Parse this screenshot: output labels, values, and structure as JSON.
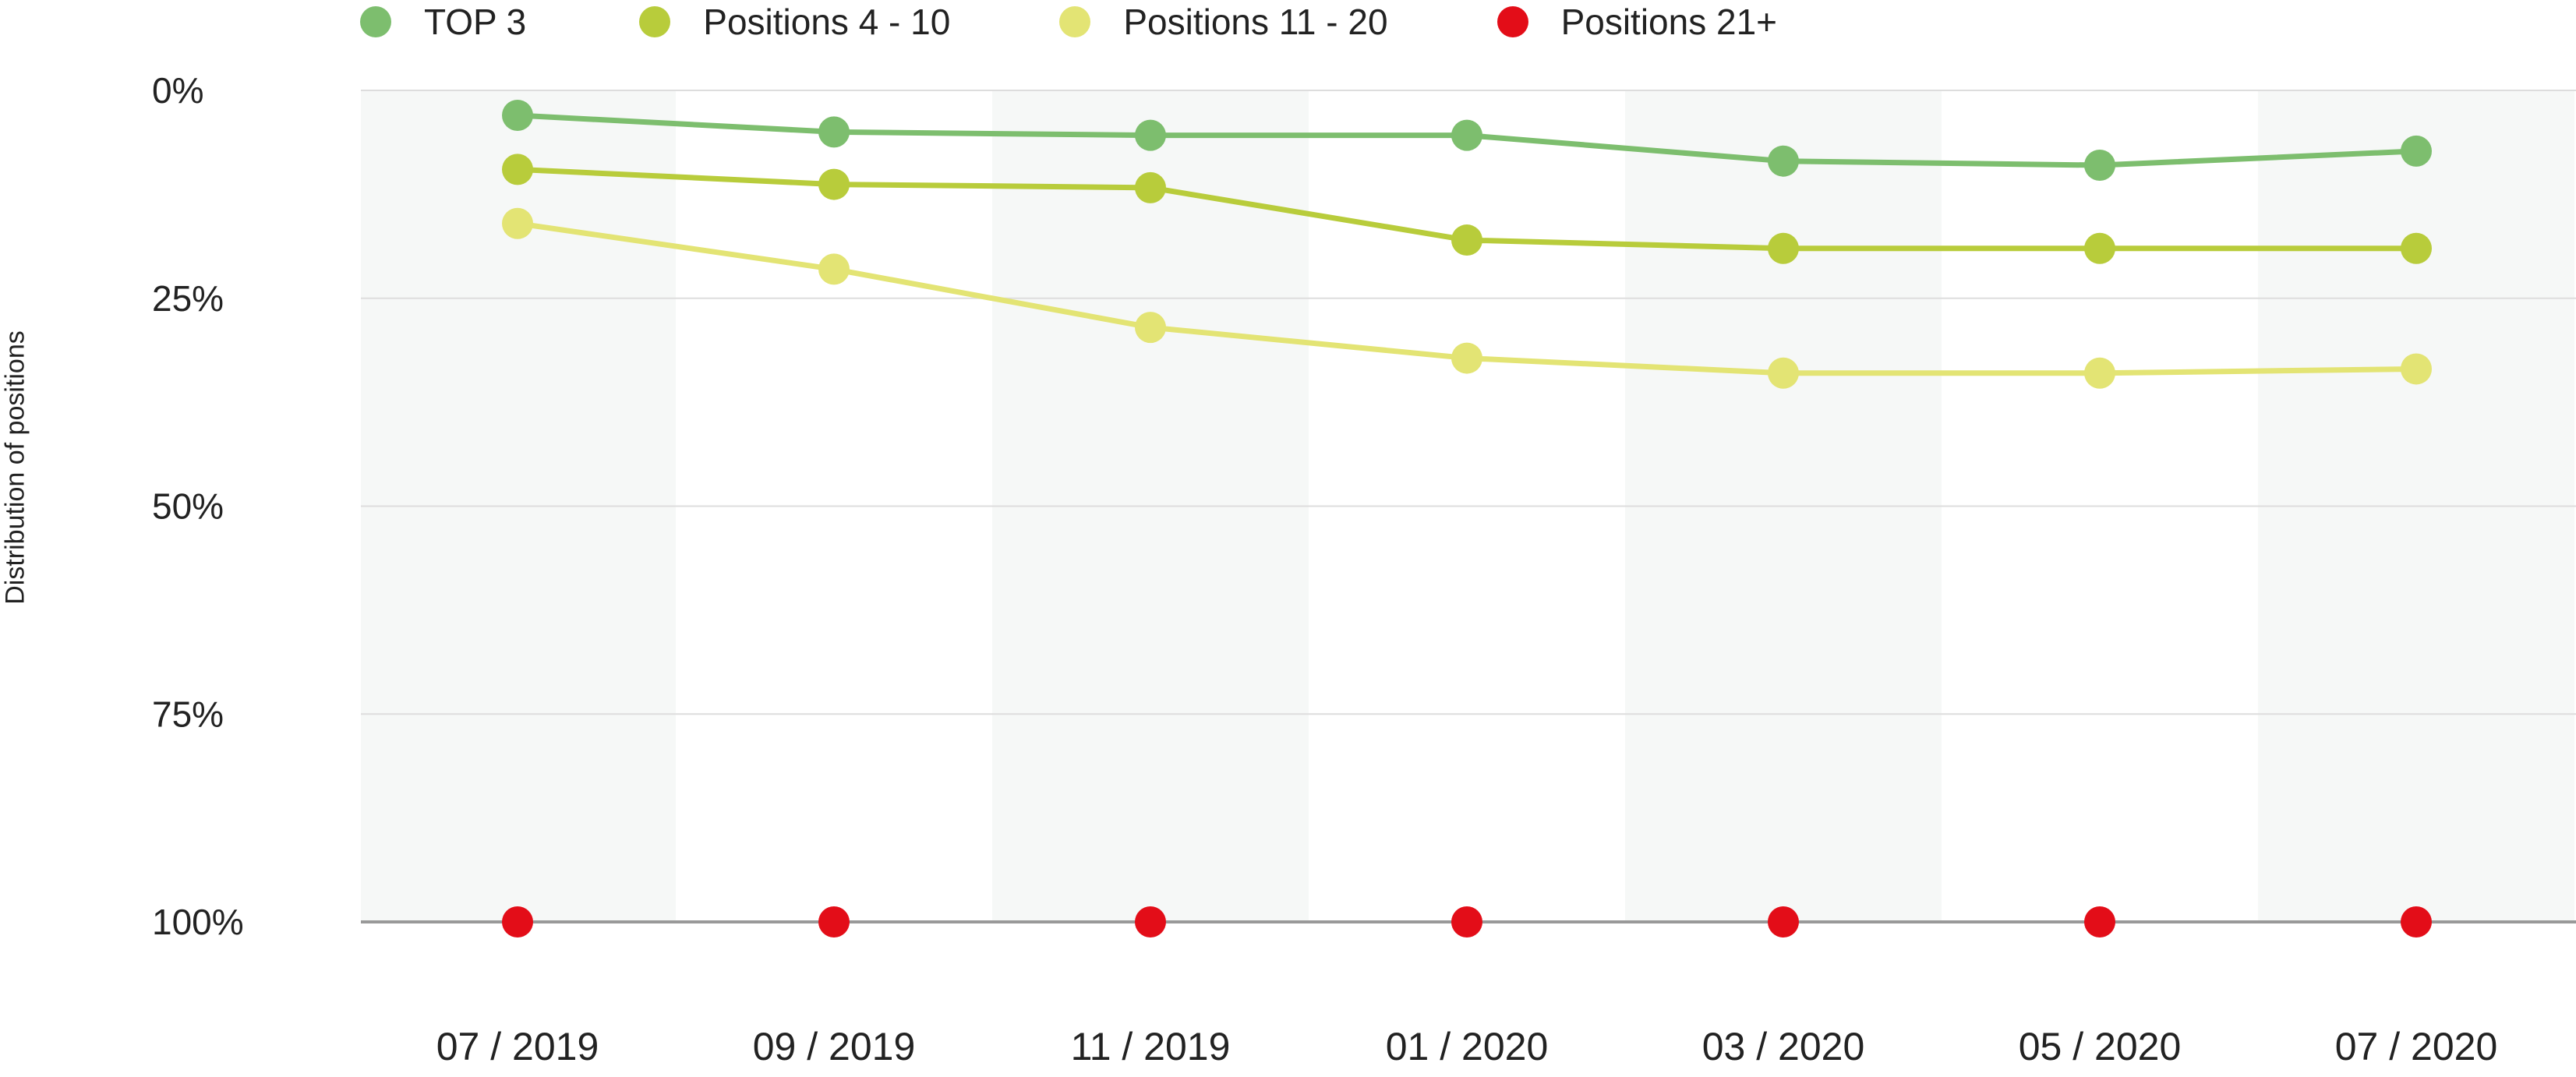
{
  "chart_data": {
    "type": "line",
    "title": "",
    "xlabel": "",
    "ylabel": "Distribution of positions",
    "categories": [
      "07 / 2019",
      "09 / 2019",
      "11 / 2019",
      "01 / 2020",
      "03 / 2020",
      "05 / 2020",
      "07 / 2020"
    ],
    "y_ticks": [
      "0%",
      "25%",
      "50%",
      "75%",
      "100%"
    ],
    "ylim": [
      0,
      100
    ],
    "y_inverted": true,
    "grid": true,
    "legend_position": "top-left",
    "series": [
      {
        "name": "TOP 3",
        "color": "#7dbe6e",
        "values": [
          3,
          5,
          5.4,
          5.4,
          8.5,
          9,
          7.3
        ]
      },
      {
        "name": "Positions 4 - 10",
        "color": "#b8cc3b",
        "values": [
          9.5,
          11.3,
          11.7,
          18,
          19,
          19,
          19
        ]
      },
      {
        "name": "Positions 11 - 20",
        "color": "#e3e474",
        "values": [
          16,
          21.5,
          28.5,
          32.2,
          34,
          34,
          33.5
        ]
      },
      {
        "name": "Positions 21+",
        "color": "#e30d18",
        "values": [
          100,
          100,
          100,
          100,
          100,
          100,
          100
        ]
      }
    ]
  }
}
